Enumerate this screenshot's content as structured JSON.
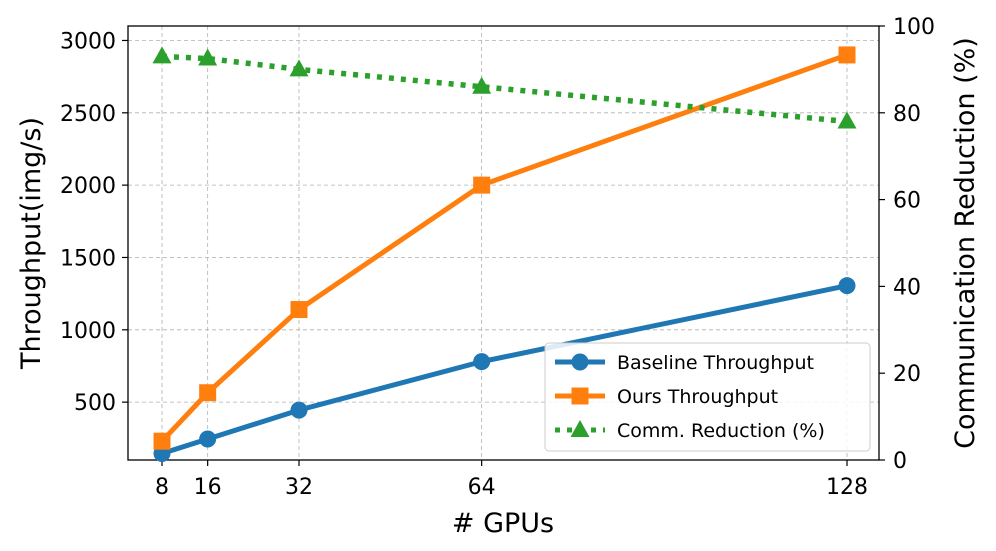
{
  "chart_data": {
    "type": "line",
    "x": [
      8,
      16,
      32,
      64,
      128
    ],
    "x_tick_labels": [
      "8",
      "16",
      "32",
      "64",
      "128"
    ],
    "xlabel": "# GPUs",
    "ylabel": "Throughput(img/s)",
    "ylabel_right": "Communication Reduction (%)",
    "y_ticks": [
      "500",
      "1000",
      "1500",
      "2000",
      "2500",
      "3000"
    ],
    "y_right_ticks": [
      "0",
      "20",
      "40",
      "60",
      "80",
      "100"
    ],
    "ylim": [
      100,
      3100
    ],
    "ylim_right": [
      0,
      100
    ],
    "grid": true,
    "legend_position": "lower-right",
    "series": [
      {
        "name": "Baseline Throughput",
        "axis": "left",
        "values": [
          145,
          245,
          445,
          780,
          1305
        ],
        "color": "#1f77b4",
        "marker": "circle",
        "style": "solid"
      },
      {
        "name": "Ours Throughput",
        "axis": "left",
        "values": [
          230,
          565,
          1140,
          2000,
          2900
        ],
        "color": "#ff7f0e",
        "marker": "square",
        "style": "solid"
      },
      {
        "name": "Comm. Reduction (%)",
        "axis": "right",
        "values": [
          93,
          92.5,
          90,
          86,
          78
        ],
        "color": "#2ca02c",
        "marker": "triangle",
        "style": "dotted"
      }
    ]
  }
}
